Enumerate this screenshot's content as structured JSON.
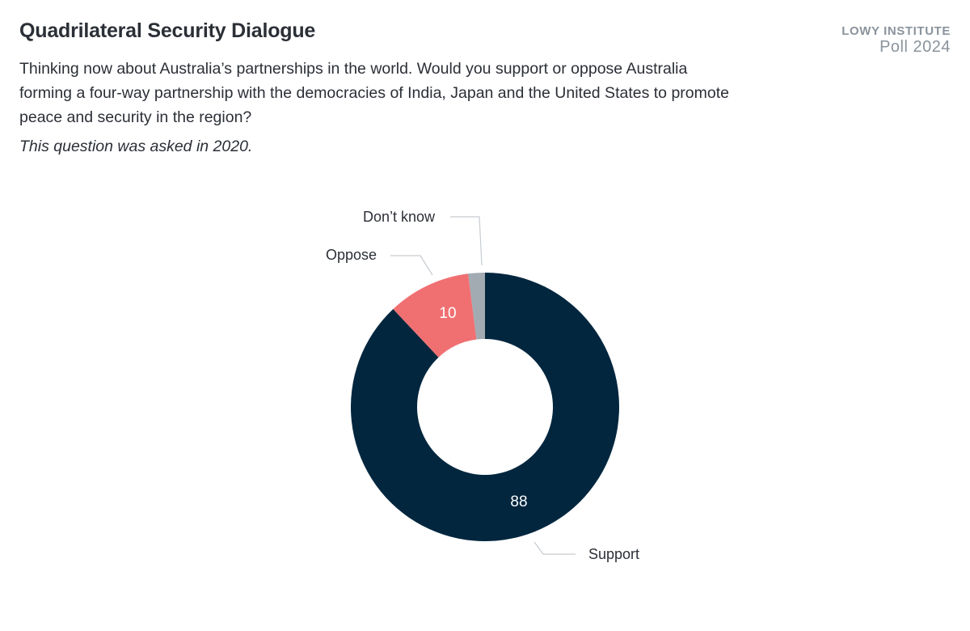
{
  "header": {
    "title": "Quadrilateral Security Dialogue",
    "question": "Thinking now about Australia’s partnerships in the world. Would you support or oppose Australia forming a four-way partnership with the democracies of India, Japan and the United States to promote peace and security in the region?",
    "note": "This question was asked in 2020."
  },
  "brand": {
    "org": "LOWY INSTITUTE",
    "poll": "Poll 2024"
  },
  "chart_data": {
    "type": "pie",
    "subtype": "donut",
    "title": "Quadrilateral Security Dialogue",
    "categories": [
      "Support",
      "Oppose",
      "Don’t know"
    ],
    "values": [
      88,
      10,
      2
    ],
    "data_labels": [
      "88",
      "10",
      ""
    ],
    "colors": [
      "#01263e",
      "#f07072",
      "#a2abb2"
    ],
    "legend": "none (leader-line labels)"
  }
}
